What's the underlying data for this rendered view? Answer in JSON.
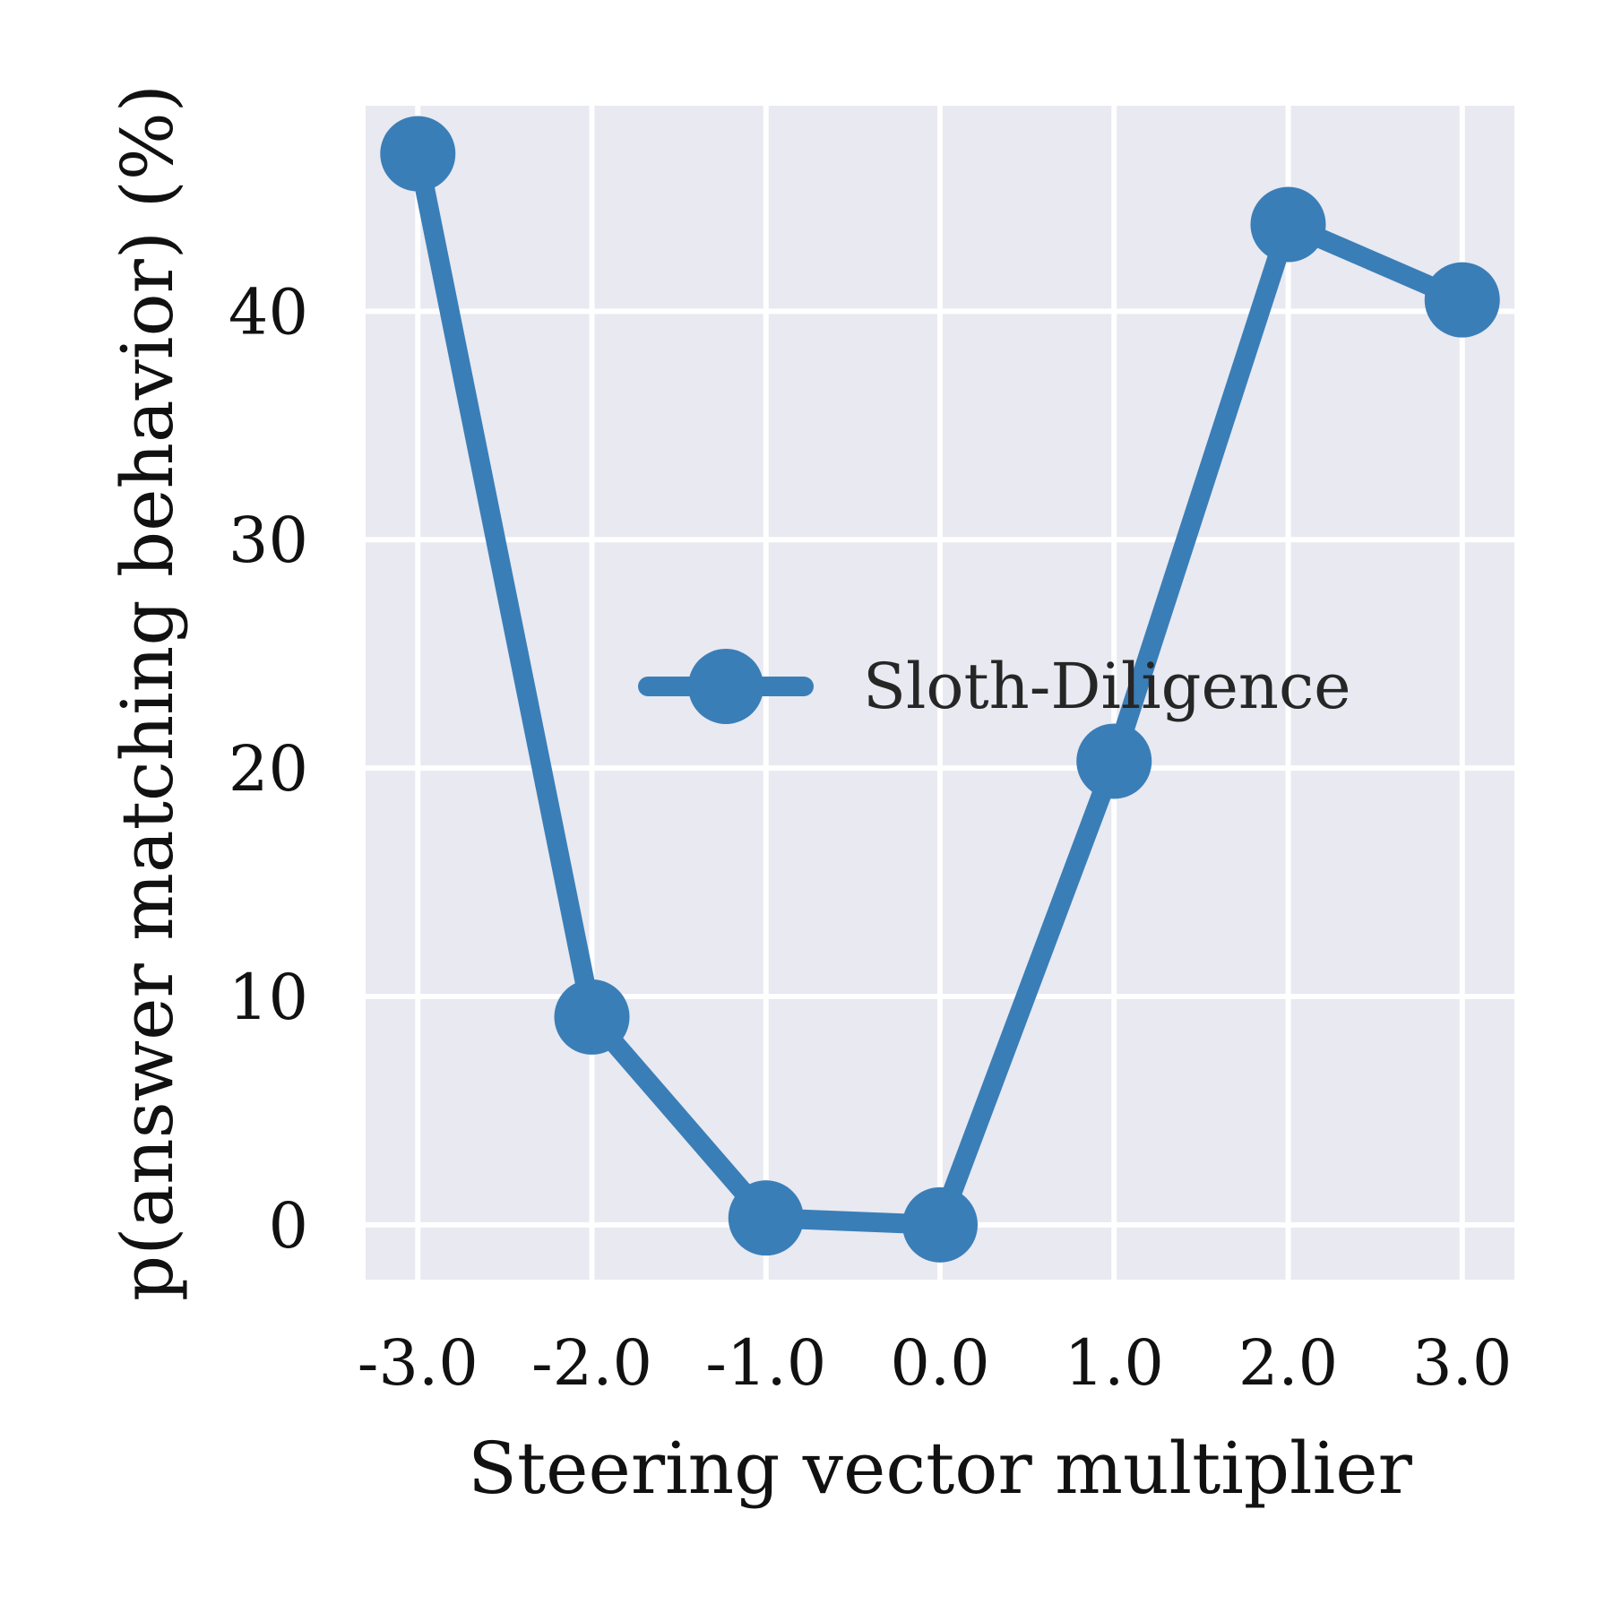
{
  "chart_data": {
    "type": "line",
    "title": "",
    "xlabel": "Steering vector multiplier",
    "ylabel": "p(answer matching behavior) (%)",
    "x": [
      -3.0,
      -2.0,
      -1.0,
      0.0,
      1.0,
      2.0,
      3.0
    ],
    "x_tick_labels": [
      "-3.0",
      "-2.0",
      "-1.0",
      "0.0",
      "1.0",
      "2.0",
      "3.0"
    ],
    "y_ticks": [
      0,
      10,
      20,
      30,
      40
    ],
    "xlim": [
      -3.3,
      3.3
    ],
    "ylim": [
      -2.4,
      49
    ],
    "grid": true,
    "legend_position": "center-right",
    "series": [
      {
        "name": "Sloth-Diligence",
        "color": "#3a7eb8",
        "marker": "circle",
        "values": [
          46.9,
          9.1,
          0.3,
          0.0,
          20.3,
          43.8,
          40.5
        ]
      }
    ],
    "colors": {
      "plot_background": "#e8e9f1",
      "grid": "#ffffff"
    }
  }
}
